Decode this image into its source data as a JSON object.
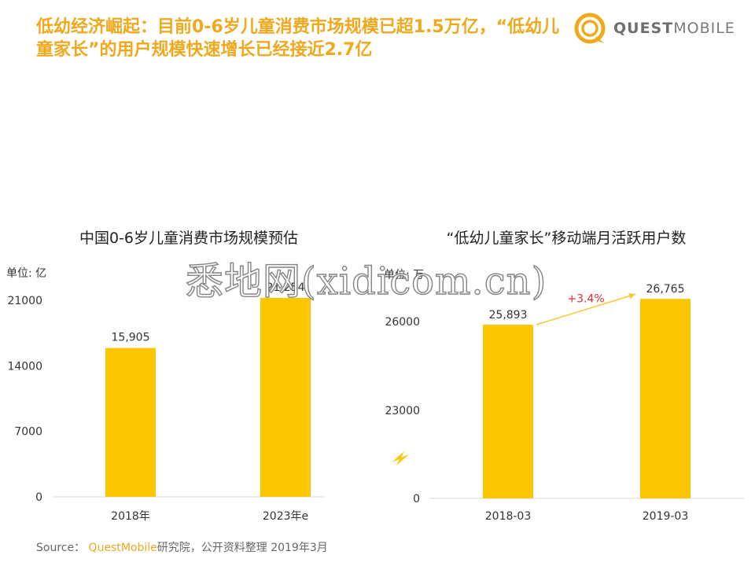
{
  "headline": "低幼经济崛起：目前0-6岁儿童消费市场规模已超1.5万亿，“低幼儿童家长”的用户规模快速增长已经接近2.7亿",
  "logo": {
    "text_bold": "QUEST",
    "text_light": "MOBILE"
  },
  "watermark": "悉地网(xidicom.cn)",
  "source": {
    "label": "Source：",
    "brand": "QuestMobile",
    "text": "研究院，公开资料整理 2019年3月"
  },
  "colors": {
    "accent": "#f0a81c",
    "bar": "#fcc600",
    "growth_arrow": "#f8c93a",
    "growth_label": "#e03030"
  },
  "chart_data": [
    {
      "type": "bar",
      "title": "中国0-6岁儿童消费市场规模预估",
      "unit_label": "单位: 亿",
      "categories": [
        "2018年",
        "2023年e"
      ],
      "values": [
        15905,
        21254
      ],
      "value_labels": [
        "15,905",
        "21,254"
      ],
      "ylim": [
        0,
        21000
      ],
      "yticks": [
        0,
        7000,
        14000,
        21000
      ],
      "grid": false,
      "legend": "none"
    },
    {
      "type": "bar",
      "title": "“低幼儿童家长”移动端月活跃用户数",
      "unit_label": "单位: 万",
      "categories": [
        "2018-03",
        "2019-03"
      ],
      "values": [
        25893,
        26765
      ],
      "value_labels": [
        "25,893",
        "26,765"
      ],
      "ylim": [
        20000,
        27000
      ],
      "yticks": [
        0,
        23000,
        26000
      ],
      "axis_break": true,
      "growth_label": "+3.4%",
      "grid": false,
      "legend": "none"
    }
  ]
}
